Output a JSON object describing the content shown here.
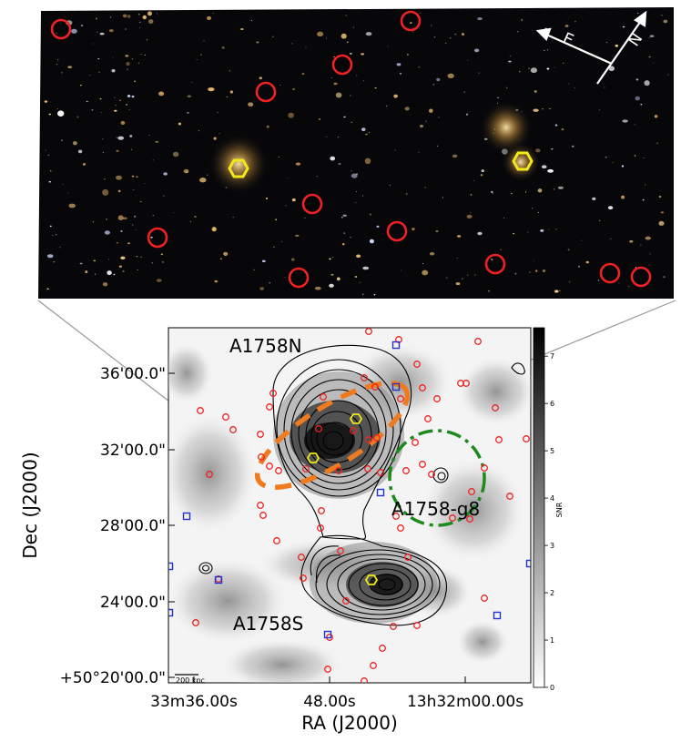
{
  "optical_panel": {
    "compass": {
      "east": "E",
      "north": "N"
    },
    "galaxies": [
      "hex-left",
      "hex-right"
    ]
  },
  "map_panel": {
    "labels": {
      "north_cluster": "A1758N",
      "south_cluster": "A1758S",
      "group": "A1758-g8",
      "scale_bar": "200 kpc"
    },
    "axes": {
      "xlabel": "RA (J2000)",
      "ylabel": "Dec (J2000)",
      "xticks": [
        "33m36.00s",
        "48.00s",
        "13h32m00.00s"
      ],
      "yticks": [
        "+50°20'00.0\"",
        "24'00.0\"",
        "28'00.0\"",
        "32'00.0\"",
        "36'00.0\""
      ]
    },
    "colorbar": {
      "label": "SNR",
      "ticks": [
        "0",
        "1",
        "2",
        "3",
        "4",
        "5",
        "6",
        "7"
      ],
      "range": [
        0,
        7.6
      ]
    }
  },
  "colors": {
    "member_circle": "#ee2222",
    "square": "#2233cc",
    "hexagon": "#f2e81a",
    "dashed_ellipse": "#f07a1e",
    "group_circle": "#1e8a1e"
  }
}
